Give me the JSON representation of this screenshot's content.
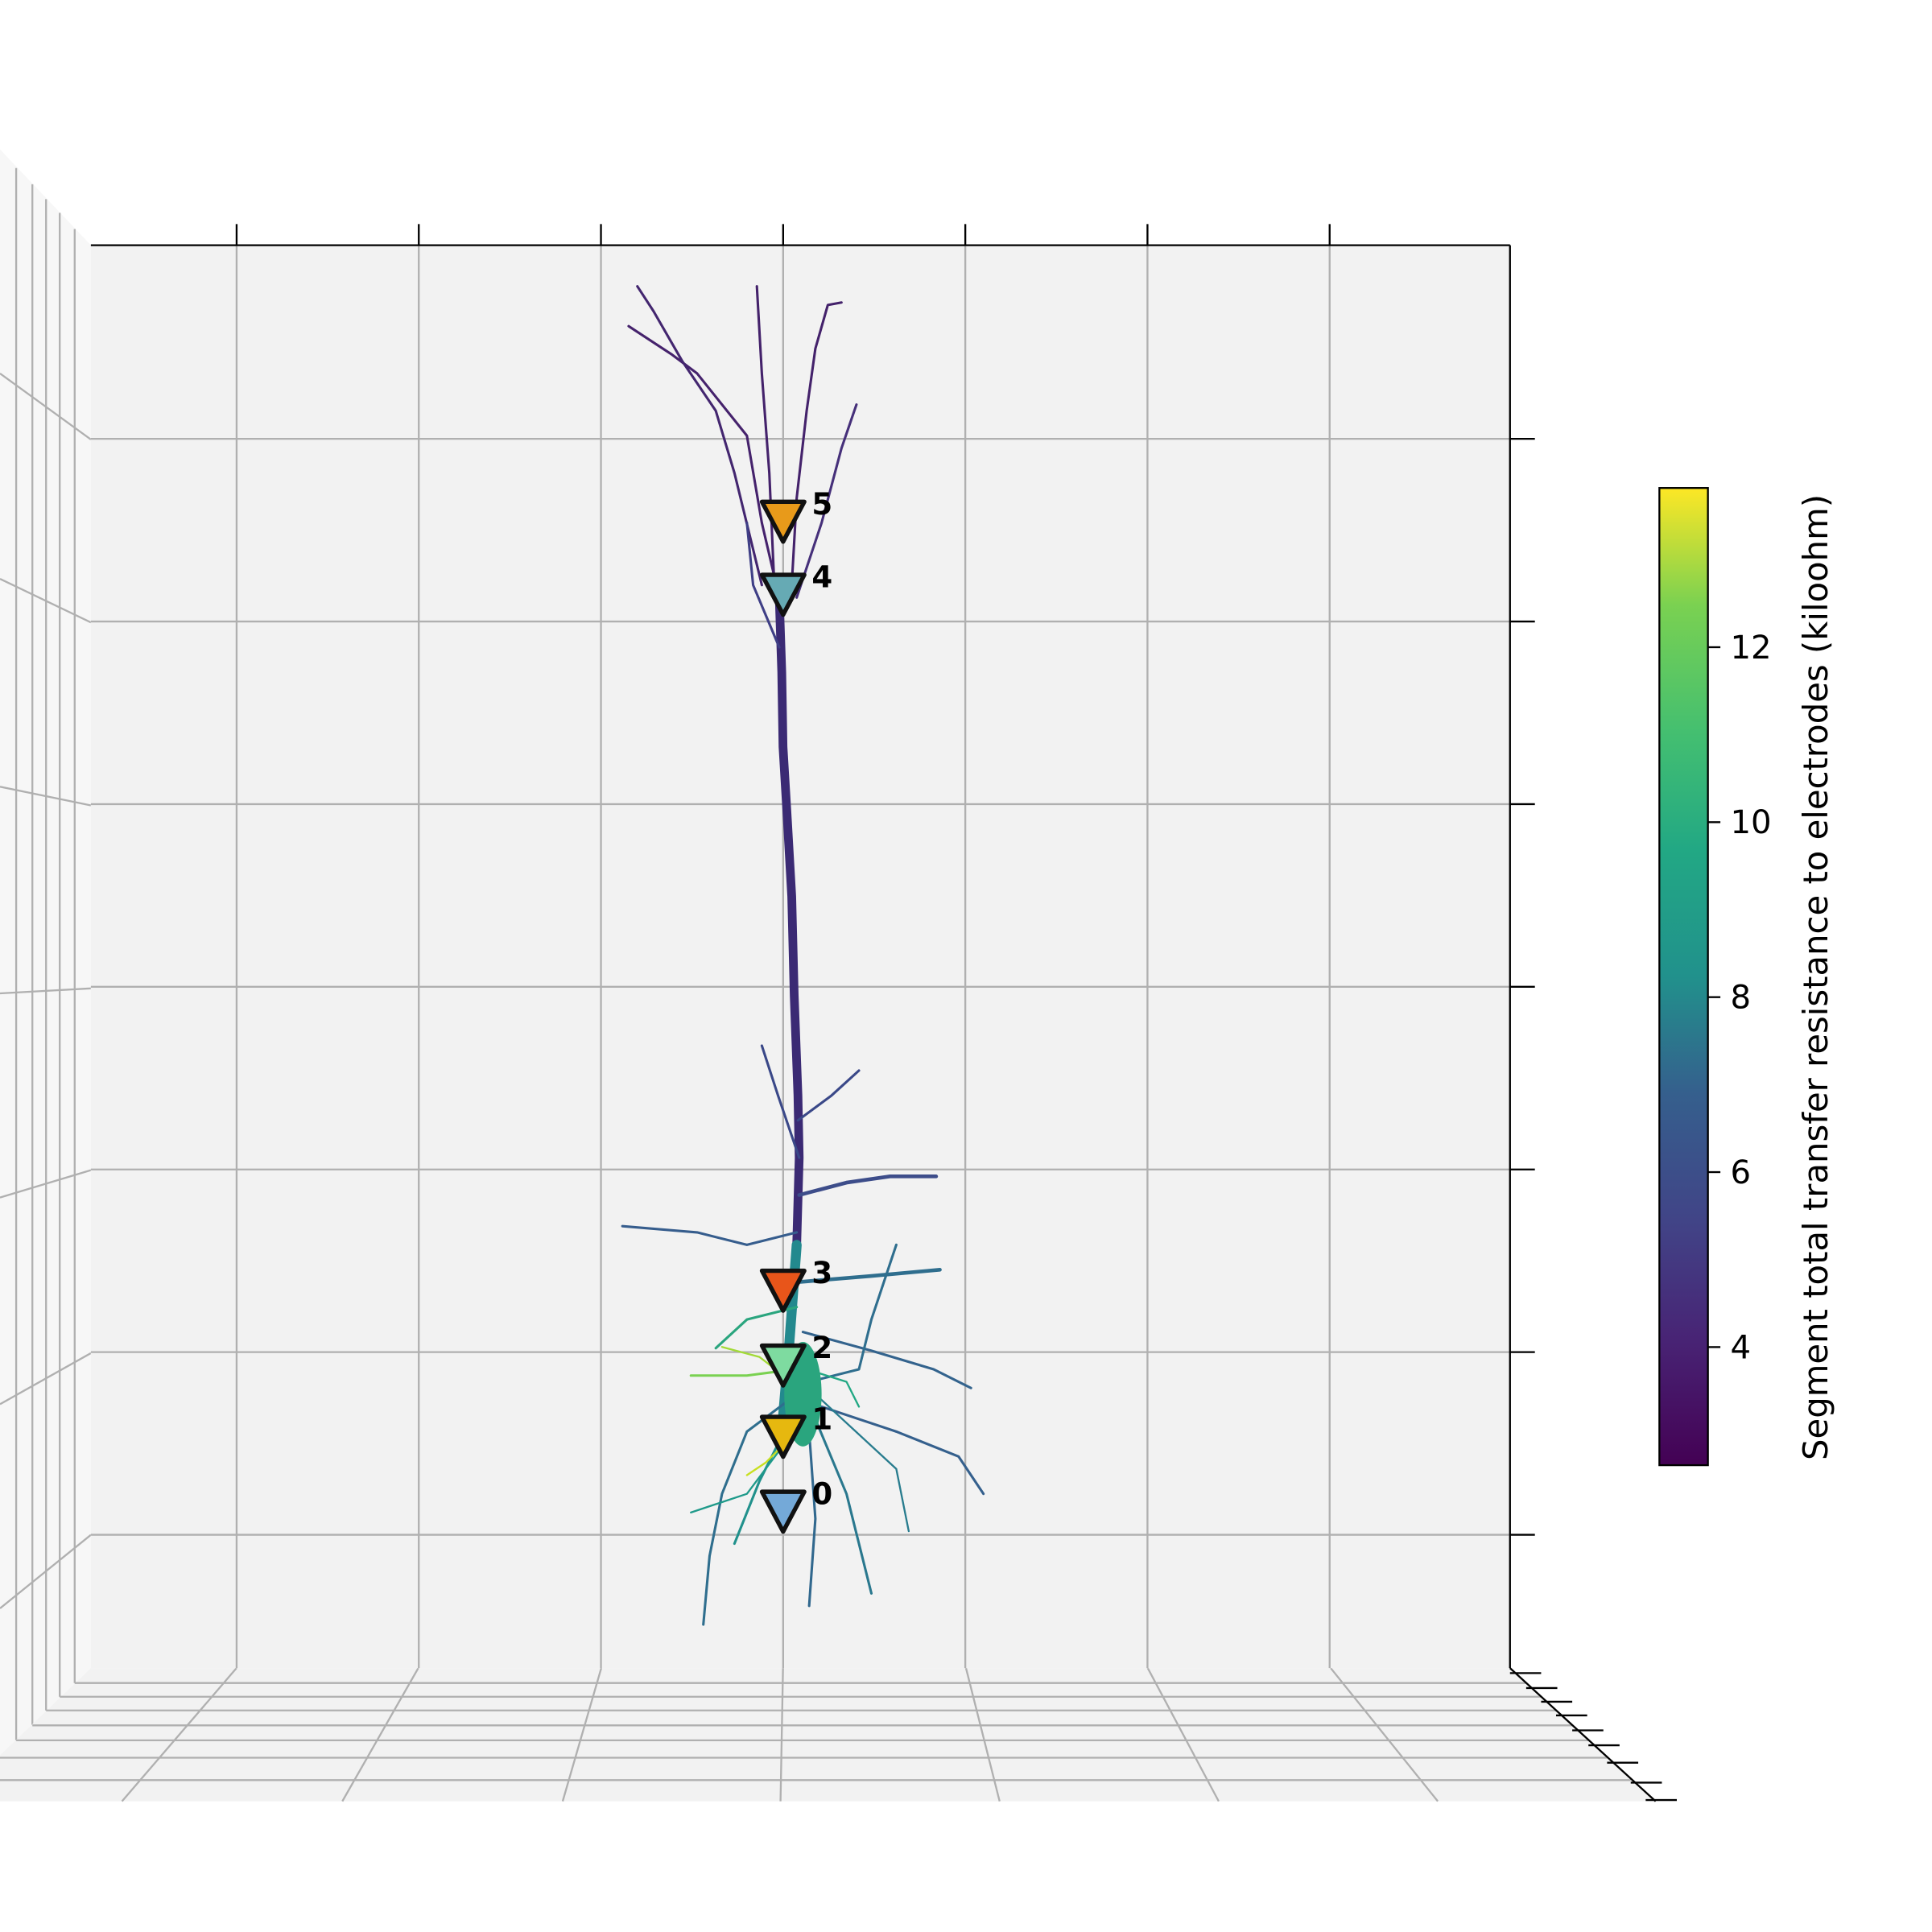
{
  "chart_data": {
    "type": "neuron-3d",
    "xlim": [
      -3.8,
      3.99
    ],
    "xticks": [
      -3,
      -2,
      -1,
      0,
      1,
      2,
      3
    ],
    "zlim": [
      -0.73,
      7.06
    ],
    "zticks": [
      0,
      1,
      2,
      3,
      4,
      5,
      6
    ],
    "grid": true,
    "electrodes": [
      {
        "label": "0",
        "color": "#74a9d8",
        "x": 0,
        "z": 0.14
      },
      {
        "label": "1",
        "color": "#e6b80f",
        "x": 0,
        "z": 0.55
      },
      {
        "label": "2",
        "color": "#7edba0",
        "x": 0,
        "z": 0.94
      },
      {
        "label": "3",
        "color": "#e8551a",
        "x": 0,
        "z": 1.35
      },
      {
        "label": "4",
        "color": "#66aab4",
        "x": 0,
        "z": 5.16
      },
      {
        "label": "5",
        "color": "#e89a1a",
        "x": 0,
        "z": 5.56
      }
    ],
    "colorbar": {
      "label": "Segment total transfer resistance to electrodes (kiloohm)",
      "clim": [
        2.65,
        13.82
      ],
      "ticks": [
        4,
        6,
        8,
        10,
        12
      ],
      "colormap": "viridis"
    }
  }
}
